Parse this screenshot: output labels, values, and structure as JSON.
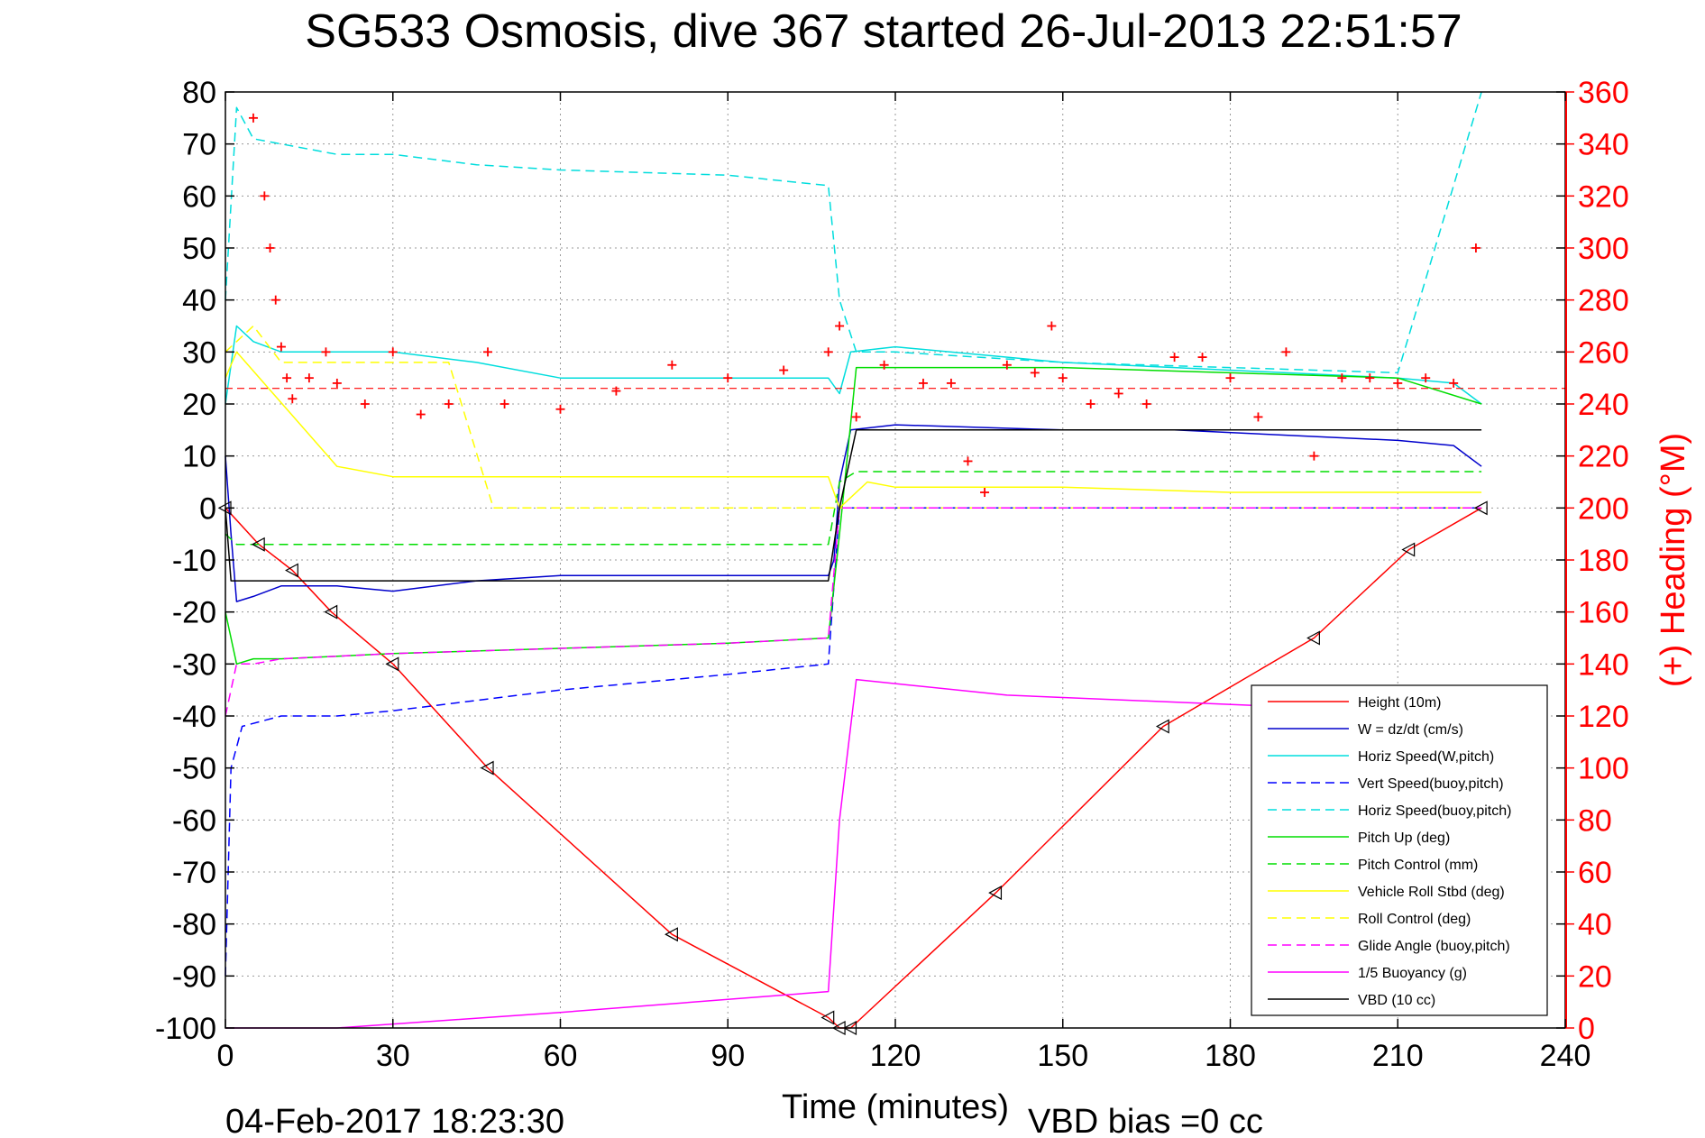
{
  "chart_data": {
    "type": "line",
    "title": "SG533 Osmosis, dive 367 started 26-Jul-2013 22:51:57",
    "xlabel": "Time (minutes)",
    "ylabel_right": "(+) Heading (°M)",
    "footer_date": "04-Feb-2017 18:23:30",
    "footer_bias": "VBD bias =0 cc",
    "xlim": [
      0,
      240
    ],
    "ylim": [
      -100,
      80
    ],
    "ylim_right": [
      0,
      360
    ],
    "x_ticks": [
      0,
      30,
      60,
      90,
      120,
      150,
      180,
      210,
      240
    ],
    "y_ticks": [
      80,
      70,
      60,
      50,
      40,
      30,
      20,
      10,
      0,
      -10,
      -20,
      -30,
      -40,
      -50,
      -60,
      -70,
      -80,
      -90,
      -100
    ],
    "y_ticks_right": [
      360,
      340,
      320,
      300,
      280,
      260,
      240,
      220,
      200,
      180,
      160,
      140,
      120,
      100,
      80,
      60,
      40,
      20,
      0
    ],
    "grid": true,
    "legend_position": "bottom-right",
    "series": [
      {
        "name": "Height (10m)",
        "color": "#ff0000",
        "style": "solid",
        "x": [
          0,
          6,
          12,
          19,
          30,
          47,
          80,
          108,
          110,
          112,
          138,
          168,
          195,
          212,
          225
        ],
        "y": [
          0,
          -7,
          -12,
          -20,
          -30,
          -50,
          -82,
          -98,
          -100,
          -100,
          -74,
          -42,
          -25,
          -8,
          0
        ]
      },
      {
        "name": "W = dz/dt (cm/s)",
        "color": "#0000cc",
        "style": "solid",
        "x": [
          0,
          1,
          2,
          5,
          10,
          20,
          30,
          45,
          60,
          90,
          108,
          109,
          110,
          112,
          120,
          150,
          170,
          190,
          210,
          220,
          225
        ],
        "y": [
          10,
          -5,
          -18,
          -17,
          -15,
          -15,
          -16,
          -14,
          -13,
          -13,
          -13,
          -10,
          5,
          15,
          16,
          15,
          15,
          14,
          13,
          12,
          8
        ]
      },
      {
        "name": "Horiz Speed(W,pitch)",
        "color": "#00dddd",
        "style": "solid",
        "x": [
          0,
          2,
          5,
          10,
          20,
          30,
          45,
          60,
          90,
          108,
          110,
          112,
          120,
          150,
          170,
          190,
          210,
          220,
          225
        ],
        "y": [
          20,
          35,
          32,
          30,
          30,
          30,
          28,
          25,
          25,
          25,
          22,
          30,
          31,
          28,
          27,
          26,
          25,
          24,
          20
        ]
      },
      {
        "name": "Vert Speed(buoy,pitch)",
        "color": "#0000ff",
        "style": "dashed",
        "x": [
          0,
          1,
          3,
          10,
          20,
          30,
          45,
          60,
          90,
          108,
          110,
          225
        ],
        "y": [
          -90,
          -50,
          -42,
          -40,
          -40,
          -39,
          -37,
          -35,
          -32,
          -30,
          0,
          0
        ]
      },
      {
        "name": "Horiz Speed(buoy,pitch)",
        "color": "#00dddd",
        "style": "dashed",
        "x": [
          0,
          2,
          5,
          20,
          30,
          45,
          60,
          90,
          108,
          110,
          113,
          120,
          150,
          180,
          210,
          225
        ],
        "y": [
          40,
          77,
          71,
          68,
          68,
          66,
          65,
          64,
          62,
          40,
          30,
          30,
          28,
          27,
          26,
          80
        ]
      },
      {
        "name": "Pitch Up (deg)",
        "color": "#00dd00",
        "style": "solid",
        "x": [
          0,
          2,
          5,
          10,
          30,
          60,
          90,
          108,
          110,
          113,
          120,
          150,
          180,
          210,
          225
        ],
        "y": [
          -20,
          -30,
          -29,
          -29,
          -28,
          -27,
          -26,
          -25,
          -5,
          27,
          27,
          27,
          26,
          25,
          20
        ]
      },
      {
        "name": "Pitch Control (mm)",
        "color": "#00dd00",
        "style": "dashed",
        "x": [
          0,
          2,
          30,
          108,
          110,
          113,
          225
        ],
        "y": [
          -5,
          -7,
          -7,
          -7,
          5,
          7,
          7
        ]
      },
      {
        "name": "Vehicle Roll Stbd (deg)",
        "color": "#ffff00",
        "style": "solid",
        "x": [
          0,
          2,
          20,
          30,
          35,
          108,
          110,
          115,
          120,
          150,
          180,
          210,
          225
        ],
        "y": [
          25,
          30,
          8,
          6,
          6,
          6,
          0,
          5,
          4,
          4,
          3,
          3,
          3
        ]
      },
      {
        "name": "Roll Control (deg)",
        "color": "#ffff00",
        "style": "dashed",
        "x": [
          0,
          5,
          10,
          20,
          30,
          40,
          48,
          50,
          100,
          108,
          110,
          225
        ],
        "y": [
          30,
          35,
          28,
          28,
          28,
          28,
          0,
          0,
          0,
          0,
          0,
          0
        ]
      },
      {
        "name": "Glide Angle (buoy,pitch)",
        "color": "#ff00ff",
        "style": "dashed",
        "x": [
          0,
          2,
          5,
          10,
          30,
          60,
          90,
          108,
          110,
          113,
          225
        ],
        "y": [
          -40,
          -30,
          -30,
          -29,
          -28,
          -27,
          -26,
          -25,
          0,
          0,
          0
        ]
      },
      {
        "name": "1/5 Buoyancy (g)",
        "color": "#ff00ff",
        "style": "solid",
        "x": [
          0,
          20,
          60,
          108,
          110,
          113,
          140,
          185
        ],
        "y": [
          -100,
          -100,
          -97,
          -93,
          -60,
          -33,
          -36,
          -38
        ]
      },
      {
        "name": "VBD (10 cc)",
        "color": "#000000",
        "style": "solid",
        "x": [
          0,
          1,
          2,
          108,
          110,
          113,
          225
        ],
        "y": [
          0,
          -14,
          -14,
          -14,
          0,
          15,
          15
        ]
      }
    ],
    "heading_series": {
      "name": "(+) Heading (°M)",
      "color": "#ff0000",
      "marker": "+",
      "reference_line": 246,
      "x": [
        5,
        7,
        8,
        9,
        10,
        11,
        12,
        15,
        18,
        20,
        25,
        30,
        35,
        40,
        47,
        50,
        60,
        70,
        80,
        90,
        100,
        108,
        110,
        113,
        118,
        125,
        130,
        133,
        136,
        140,
        145,
        148,
        150,
        155,
        160,
        165,
        170,
        175,
        180,
        185,
        190,
        195,
        200,
        205,
        210,
        215,
        220,
        224
      ],
      "y": [
        350,
        320,
        300,
        280,
        262,
        250,
        242,
        250,
        260,
        248,
        240,
        260,
        236,
        240,
        260,
        240,
        238,
        245,
        255,
        250,
        253,
        260,
        270,
        235,
        255,
        248,
        248,
        218,
        206,
        255,
        252,
        270,
        250,
        240,
        244,
        240,
        258,
        258,
        250,
        235,
        260,
        220,
        250,
        250,
        248,
        250,
        248,
        300
      ]
    }
  }
}
